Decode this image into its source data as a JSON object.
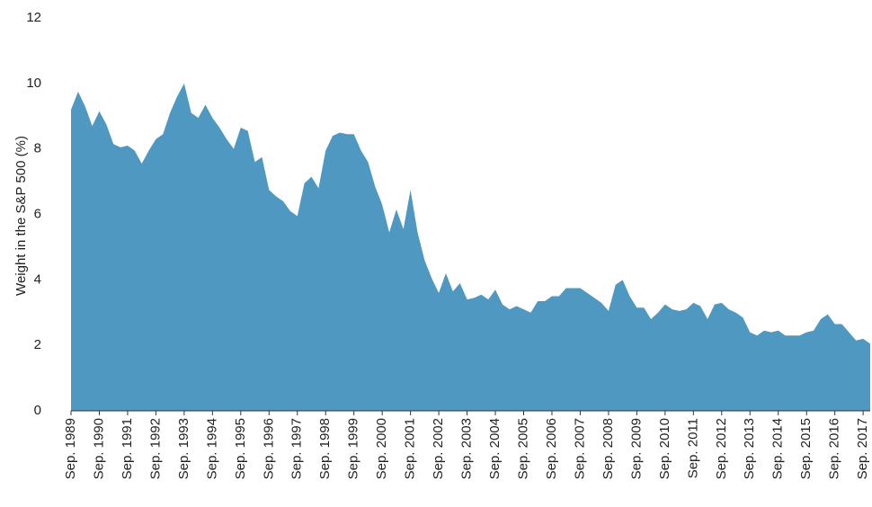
{
  "chart_data": {
    "type": "area",
    "y_label": "Weight in the S&P 500 (%)",
    "categories": [
      "Sep. 1989",
      null,
      null,
      null,
      "Sep. 1990",
      null,
      null,
      null,
      "Sep. 1991",
      null,
      null,
      null,
      "Sep. 1992",
      null,
      null,
      null,
      "Sep. 1993",
      null,
      null,
      null,
      "Sep. 1994",
      null,
      null,
      null,
      "Sep. 1995",
      null,
      null,
      null,
      "Sep. 1996",
      null,
      null,
      null,
      "Sep. 1997",
      null,
      null,
      null,
      "Sep. 1998",
      null,
      null,
      null,
      "Sep. 1999",
      null,
      null,
      null,
      "Sep. 2000",
      null,
      null,
      null,
      "Sep. 2001",
      null,
      null,
      null,
      "Sep. 2002",
      null,
      null,
      null,
      "Sep. 2003",
      null,
      null,
      null,
      "Sep. 2004",
      null,
      null,
      null,
      "Sep. 2005",
      null,
      null,
      null,
      "Sep. 2006",
      null,
      null,
      null,
      "Sep. 2007",
      null,
      null,
      null,
      "Sep. 2008",
      null,
      null,
      null,
      "Sep. 2009",
      null,
      null,
      null,
      "Sep. 2010",
      null,
      null,
      null,
      "Sep. 2011",
      null,
      null,
      null,
      "Sep. 2012",
      null,
      null,
      null,
      "Sep. 2013",
      null,
      null,
      null,
      "Sep. 2014",
      null,
      null,
      null,
      "Sep. 2015",
      null,
      null,
      null,
      "Sep. 2016",
      null,
      null,
      null,
      "Sep. 2017",
      null
    ],
    "values": [
      9.2,
      9.75,
      9.3,
      8.7,
      9.15,
      8.75,
      8.15,
      8.05,
      8.1,
      7.95,
      7.55,
      7.95,
      8.3,
      8.45,
      9.1,
      9.6,
      10.0,
      9.1,
      8.95,
      9.35,
      8.95,
      8.65,
      8.3,
      8.0,
      8.65,
      8.55,
      7.6,
      7.75,
      6.75,
      6.55,
      6.4,
      6.1,
      5.95,
      6.95,
      7.15,
      6.8,
      7.95,
      8.4,
      8.5,
      8.45,
      8.45,
      7.95,
      7.6,
      6.85,
      6.3,
      5.45,
      6.15,
      5.55,
      6.75,
      5.45,
      4.6,
      4.05,
      3.6,
      4.2,
      3.65,
      3.9,
      3.4,
      3.45,
      3.55,
      3.4,
      3.7,
      3.25,
      3.1,
      3.2,
      3.1,
      3.0,
      3.35,
      3.35,
      3.5,
      3.5,
      3.75,
      3.75,
      3.75,
      3.6,
      3.45,
      3.3,
      3.05,
      3.85,
      4.0,
      3.5,
      3.15,
      3.15,
      2.8,
      3.0,
      3.25,
      3.1,
      3.05,
      3.1,
      3.3,
      3.2,
      2.8,
      3.25,
      3.3,
      3.1,
      3.0,
      2.85,
      2.4,
      2.3,
      2.45,
      2.4,
      2.45,
      2.3,
      2.3,
      2.3,
      2.4,
      2.45,
      2.8,
      2.95,
      2.65,
      2.65,
      2.4,
      2.15,
      2.2,
      2.05
    ],
    "color": "#4f98c2",
    "ylim": [
      0,
      12
    ],
    "yticks": [
      0,
      2,
      4,
      6,
      8,
      10,
      12
    ],
    "grid": false
  }
}
